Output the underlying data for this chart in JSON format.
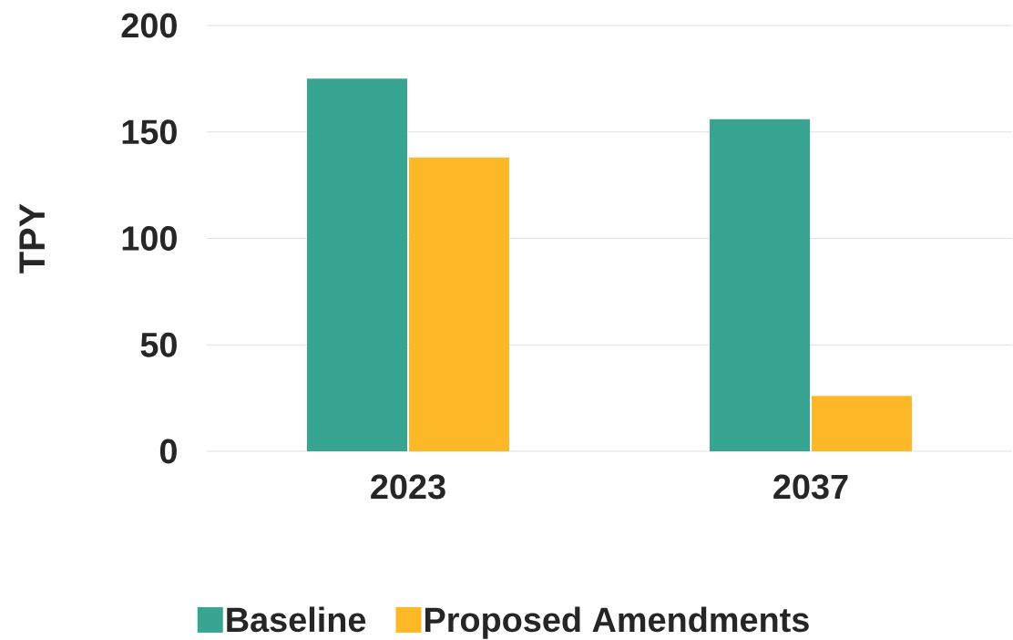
{
  "chart_data": {
    "type": "bar",
    "ylabel": "TPY",
    "categories": [
      "2023",
      "2037"
    ],
    "series": [
      {
        "name": "Baseline",
        "color": "#38a593",
        "values": [
          175,
          156
        ]
      },
      {
        "name": "Proposed Amendments",
        "color": "#fdb827",
        "values": [
          138,
          26
        ]
      }
    ],
    "ylim": [
      0,
      200
    ],
    "yticks": [
      0,
      50,
      100,
      150,
      200
    ],
    "grid": "y",
    "legend": "bottom"
  }
}
